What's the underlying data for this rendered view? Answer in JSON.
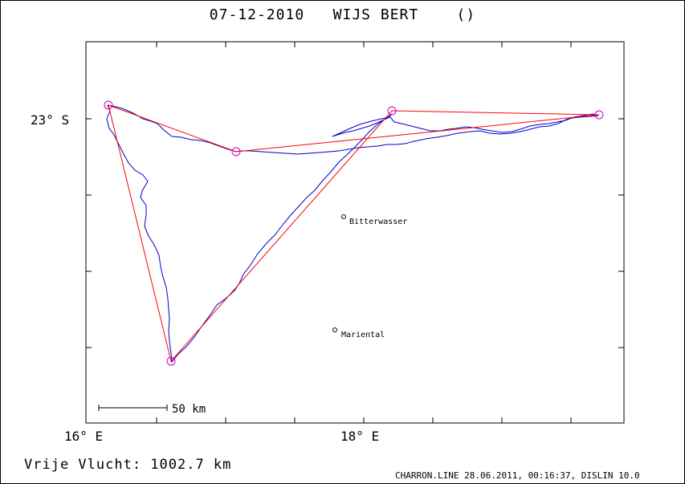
{
  "header": {
    "title": "07-12-2010   WIJS BERT    ()"
  },
  "map": {
    "lat_label": "23° S",
    "lon_labels": [
      "16° E",
      "18° E"
    ],
    "scale_label": "50 km",
    "places": [
      {
        "name": "Bitterwasser"
      },
      {
        "name": "Mariental"
      }
    ],
    "colors": {
      "track": "#0000cc",
      "task": "#ff0000",
      "turnpoint": "#cc00cc",
      "frame": "#000000"
    }
  },
  "footer": {
    "flight": "Vrije Vlucht: 1002.7 km",
    "credit": "CHARRON.LINE 28.06.2011, 00:16:37, DISLIN 10.0"
  }
}
